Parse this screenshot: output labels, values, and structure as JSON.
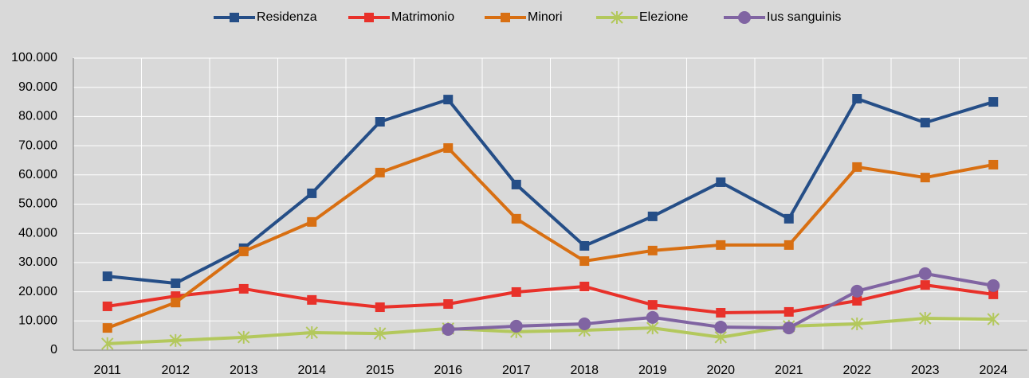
{
  "chart_data": {
    "type": "line",
    "categories": [
      "2011",
      "2012",
      "2013",
      "2014",
      "2015",
      "2016",
      "2017",
      "2018",
      "2019",
      "2020",
      "2021",
      "2022",
      "2023",
      "2024"
    ],
    "series": [
      {
        "name": "Residenza",
        "color": "#254e87",
        "marker": "square",
        "values": [
          25300,
          22900,
          34900,
          53700,
          78200,
          85800,
          56700,
          35700,
          45800,
          57500,
          45000,
          86100,
          77900,
          85000
        ]
      },
      {
        "name": "Matrimonio",
        "color": "#e8312a",
        "marker": "square",
        "values": [
          15000,
          18500,
          21000,
          17200,
          14700,
          15800,
          19900,
          21800,
          15500,
          12800,
          13100,
          16900,
          22300,
          19100
        ]
      },
      {
        "name": "Minori",
        "color": "#d86f12",
        "marker": "square",
        "values": [
          7600,
          16300,
          33800,
          43900,
          60800,
          69200,
          45000,
          30500,
          34100,
          36000,
          36000,
          62700,
          59100,
          63500
        ]
      },
      {
        "name": "Elezione",
        "color": "#b3c85c",
        "marker": "asterisk",
        "values": [
          2200,
          3300,
          4400,
          6000,
          5700,
          7400,
          6300,
          6800,
          7600,
          4400,
          8200,
          9000,
          10900,
          10600
        ]
      },
      {
        "name": "Ius sanguinis",
        "color": "#8064a2",
        "marker": "circle",
        "values": [
          null,
          null,
          null,
          null,
          null,
          7100,
          8200,
          9000,
          11200,
          7900,
          7600,
          20200,
          26200,
          22100
        ]
      }
    ],
    "ylim": [
      0,
      100000
    ],
    "yticks": [
      0,
      {
        "value": 10000,
        "label": "10.000"
      },
      {
        "value": 20000,
        "label": "20.000"
      },
      {
        "value": 30000,
        "label": "30.000"
      },
      {
        "value": 40000,
        "label": "40.000"
      },
      {
        "value": 50000,
        "label": "50.000"
      },
      {
        "value": 60000,
        "label": "60.000"
      },
      {
        "value": 70000,
        "label": "70.000"
      },
      {
        "value": 80000,
        "label": "80.000"
      },
      {
        "value": 90000,
        "label": "90.000"
      },
      {
        "value": 100000,
        "label": "100.000"
      }
    ],
    "grid": true,
    "legend": "top"
  }
}
